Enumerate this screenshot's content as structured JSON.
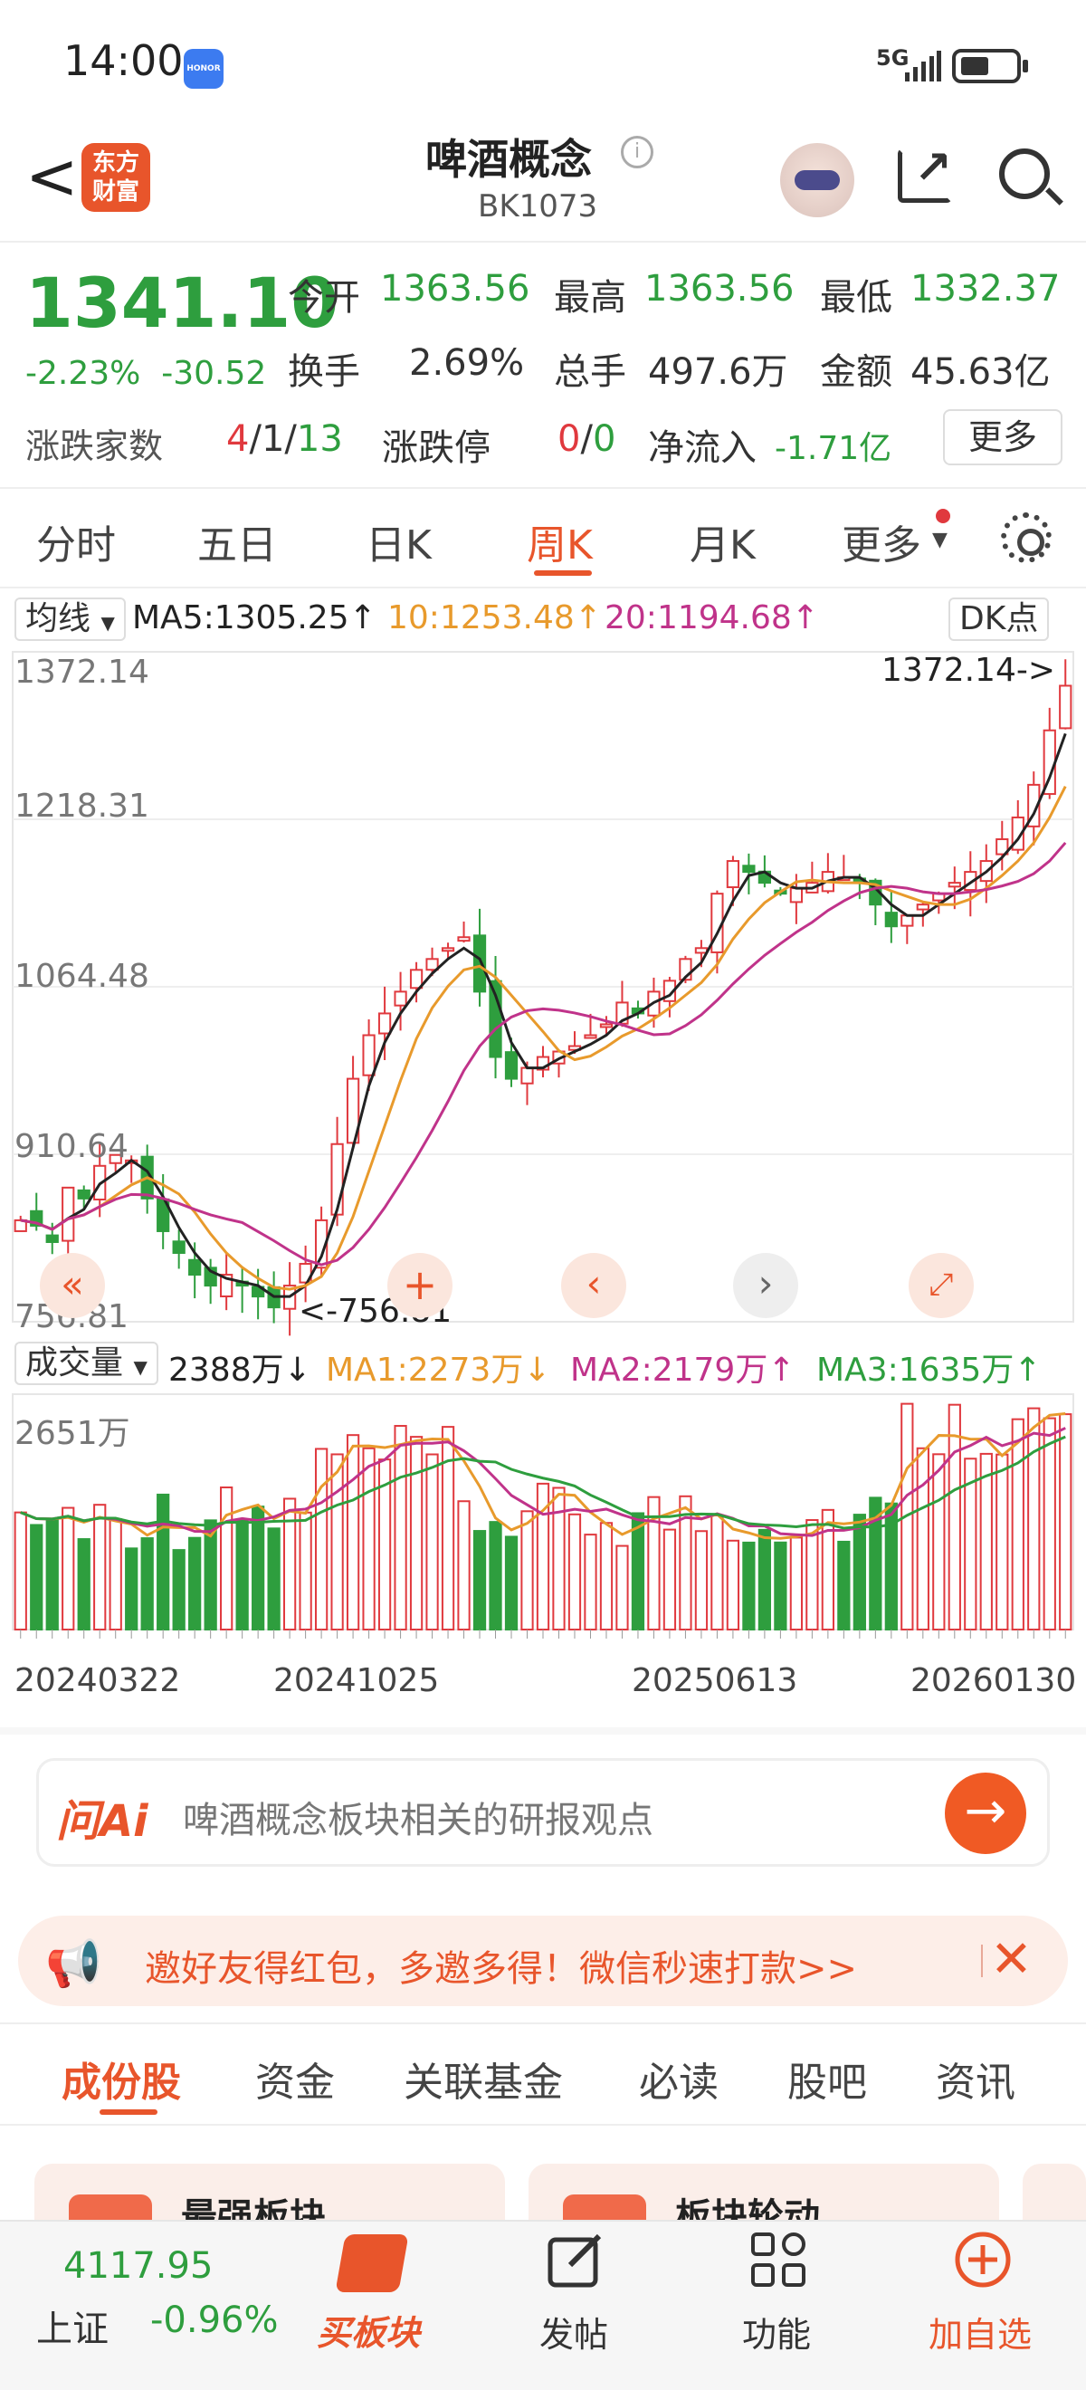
{
  "status_bar": {
    "time": "14:00",
    "brand": "HONOR",
    "network": "5G"
  },
  "header": {
    "back": "<",
    "logo": "东方财富",
    "title": "啤酒概念",
    "code": "BK1073"
  },
  "quote": {
    "price": "1341.10",
    "change_pct": "-2.23%",
    "change": "-30.52",
    "open_label": "今开",
    "open": "1363.56",
    "high_label": "最高",
    "high": "1363.56",
    "low_label": "最低",
    "low": "1332.37",
    "turnover_label": "换手",
    "turnover": "2.69%",
    "volume_label": "总手",
    "volume": "497.6万",
    "amount_label": "金额",
    "amount": "45.63亿",
    "updown_label": "涨跌家数",
    "up": "4",
    "flat": "1",
    "down": "13",
    "limit_label": "涨跌停",
    "limit_up": "0",
    "limit_down": "0",
    "netflow_label": "净流入",
    "netflow": "-1.71亿",
    "more": "更多"
  },
  "tabs": [
    "分时",
    "五日",
    "日K",
    "周K",
    "月K",
    "更多"
  ],
  "ma": {
    "selector": "均线",
    "ma5": "MA5:1305.25↑",
    "ma10": "10:1253.48↑",
    "ma20": "20:1194.68↑",
    "dk": "DK点"
  },
  "chart_data": {
    "type": "candlestick",
    "y_ticks": [
      "1372.14",
      "1218.31",
      "1064.48",
      "910.64",
      "756.81"
    ],
    "high_marker": "1372.14->",
    "low_marker": "<-756.81",
    "close_series": [
      850,
      845,
      830,
      880,
      870,
      900,
      910,
      905,
      870,
      840,
      820,
      800,
      790,
      800,
      790,
      780,
      770,
      790,
      810,
      850,
      920,
      980,
      1020,
      1040,
      1060,
      1080,
      1090,
      1100,
      1110,
      1060,
      1000,
      980,
      990,
      1000,
      1005,
      1010,
      1020,
      1030,
      1050,
      1040,
      1060,
      1070,
      1090,
      1100,
      1150,
      1180,
      1170,
      1160,
      1150,
      1155,
      1160,
      1170,
      1165,
      1160,
      1140,
      1120,
      1130,
      1140,
      1150,
      1160,
      1170,
      1180,
      1200,
      1220,
      1250,
      1300,
      1341
    ]
  },
  "volume": {
    "selector": "成交量",
    "current": "2388万↓",
    "ma1": "MA1:2273万↓",
    "ma2": "MA2:2179万↑",
    "ma3": "MA3:1635万↑",
    "top": "2651万",
    "dates": [
      "20240322",
      "20241025",
      "20250613",
      "20260130"
    ]
  },
  "ask": {
    "logo": "问Ai",
    "text": "啤酒概念板块相关的研报观点",
    "button": "→"
  },
  "banner": {
    "text": "邀好友得红包，多邀多得！微信秒速打款>>",
    "close": "✕"
  },
  "sub_tabs": [
    "成份股",
    "资金",
    "关联基金",
    "必读",
    "股吧",
    "资讯"
  ],
  "cards": [
    "最强板块",
    "板块轮动"
  ],
  "bottom": {
    "index_value": "4117.95",
    "index_name": "上证",
    "index_change": "-0.96%",
    "buy": "买板块",
    "post": "发帖",
    "func": "功能",
    "watch": "加自选"
  },
  "colors": {
    "accent": "#e8552b",
    "up": "#e0393e",
    "down": "#2e9e3e"
  }
}
